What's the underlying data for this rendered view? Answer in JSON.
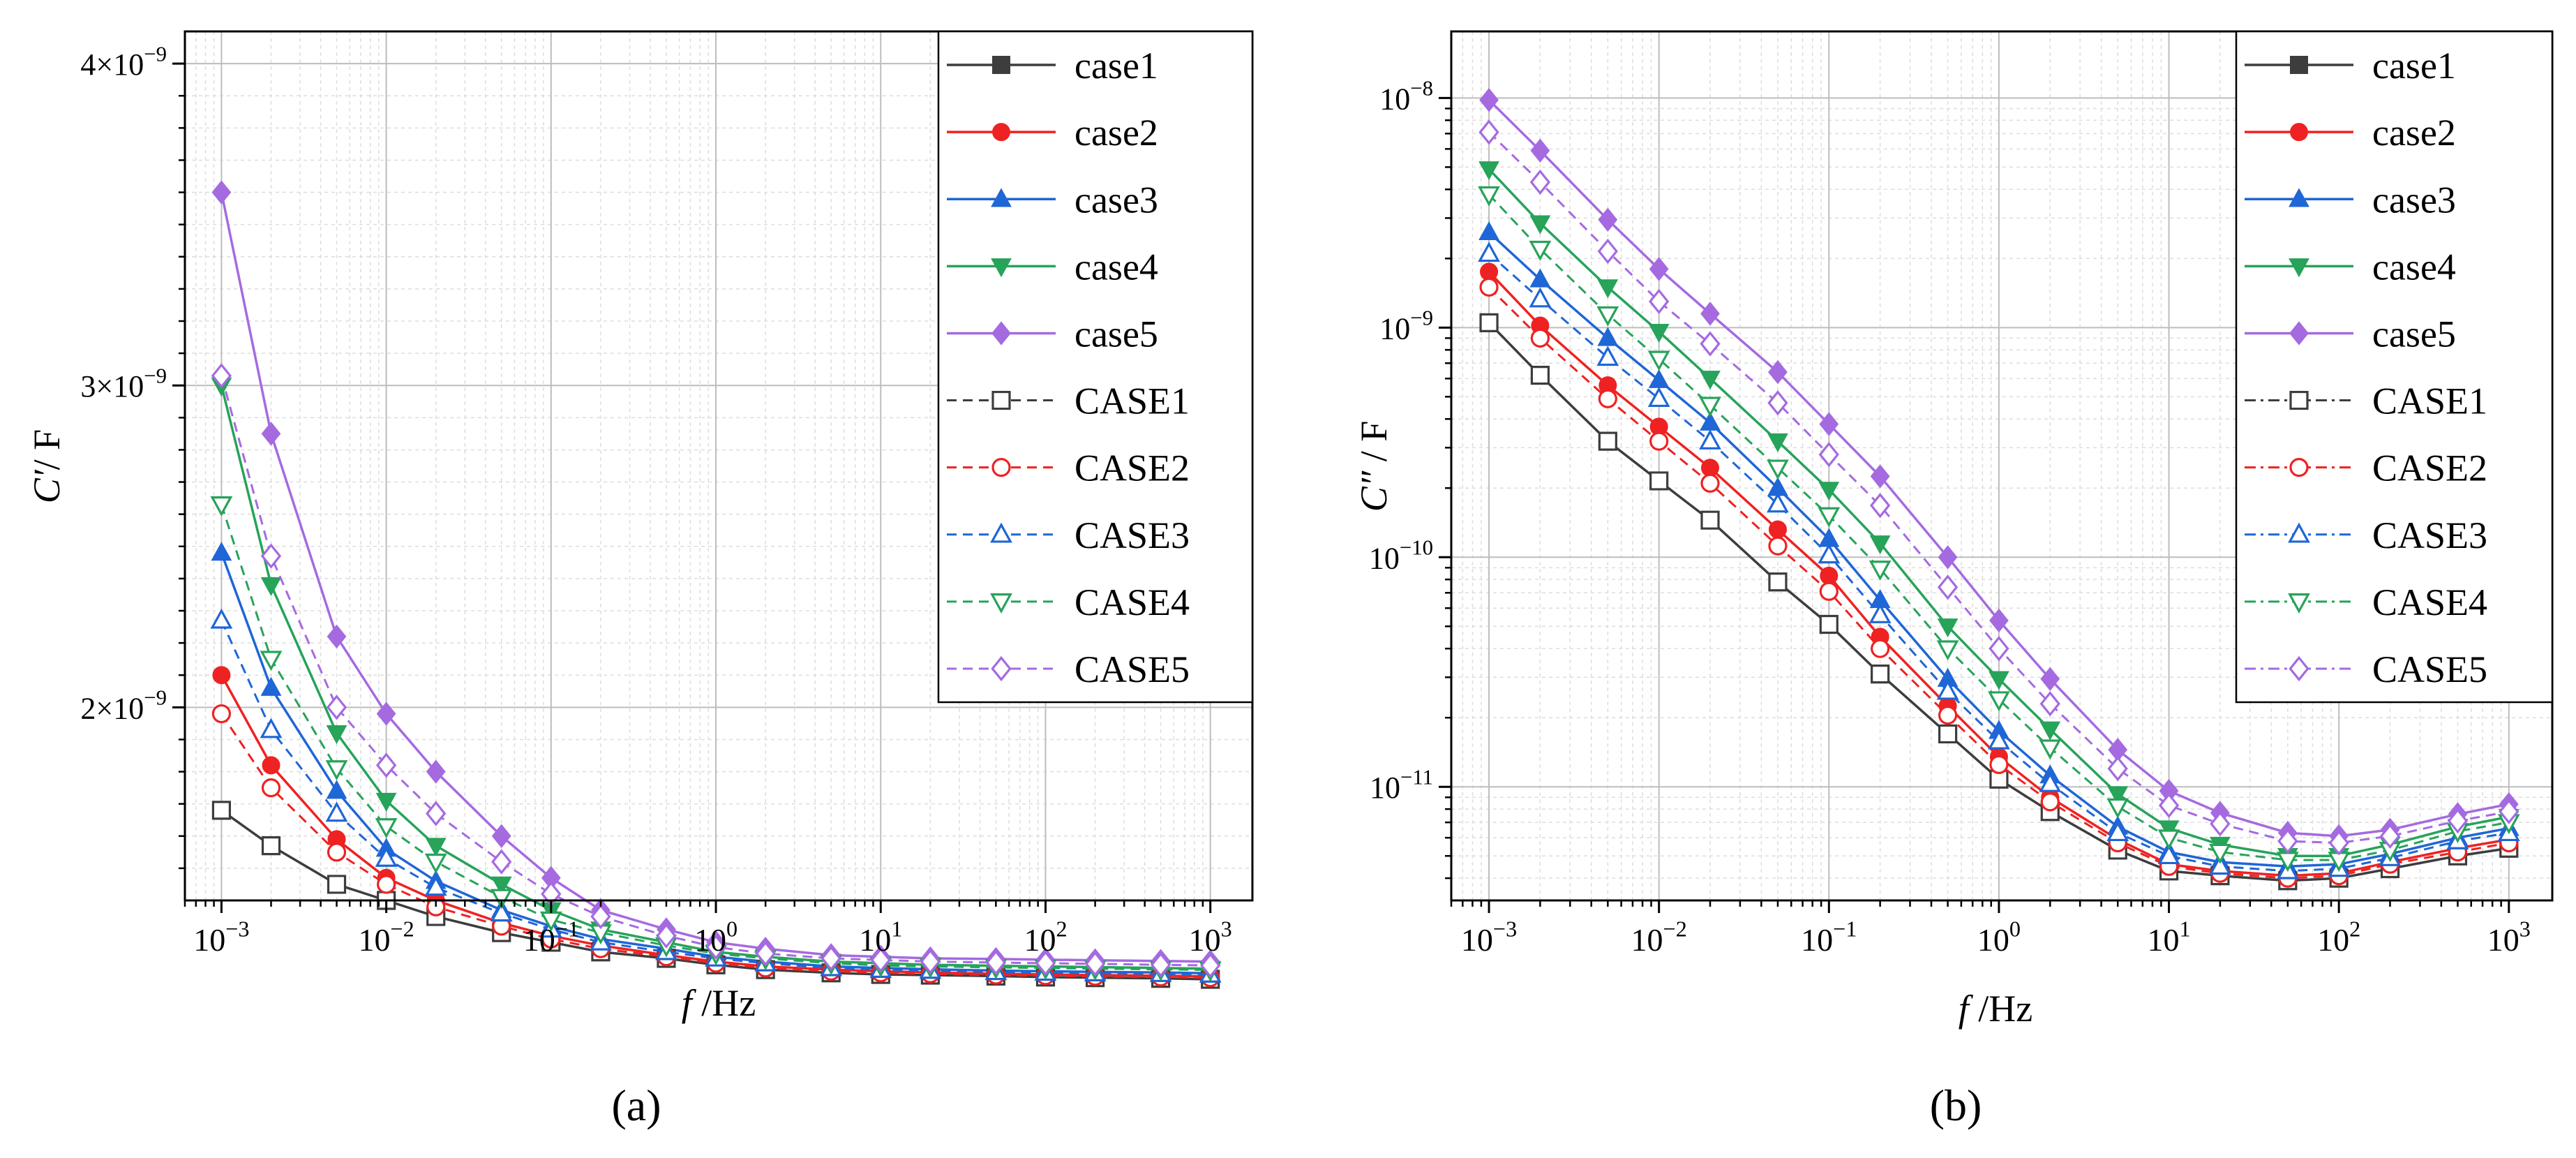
{
  "colors": {
    "case1": "#3d3d3d",
    "case2": "#ee2222",
    "case3": "#1f66d6",
    "case4": "#27a35a",
    "case5": "#a56ae0",
    "grid_major": "#bdbdbd",
    "grid_minor": "#dddddd",
    "axis": "#000000"
  },
  "legend": [
    {
      "label": "case1",
      "color": "case1",
      "marker": "square",
      "filled": true,
      "dash": "solid",
      "series": "case1"
    },
    {
      "label": "case2",
      "color": "case2",
      "marker": "circle",
      "filled": true,
      "dash": "solid",
      "series": "case2"
    },
    {
      "label": "case3",
      "color": "case3",
      "marker": "triangle-up",
      "filled": true,
      "dash": "solid",
      "series": "case3"
    },
    {
      "label": "case4",
      "color": "case4",
      "marker": "triangle-down",
      "filled": true,
      "dash": "solid",
      "series": "case4"
    },
    {
      "label": "case5",
      "color": "case5",
      "marker": "diamond",
      "filled": true,
      "dash": "solid",
      "series": "case5"
    },
    {
      "label": "CASE1",
      "color": "case1",
      "marker": "square",
      "filled": false,
      "dash": "dash",
      "series": "CASE1"
    },
    {
      "label": "CASE2",
      "color": "case2",
      "marker": "circle",
      "filled": false,
      "dash": "dash",
      "series": "CASE2"
    },
    {
      "label": "CASE3",
      "color": "case3",
      "marker": "triangle-up",
      "filled": false,
      "dash": "dash",
      "series": "CASE3"
    },
    {
      "label": "CASE4",
      "color": "case4",
      "marker": "triangle-down",
      "filled": false,
      "dash": "dash",
      "series": "CASE4"
    },
    {
      "label": "CASE5",
      "color": "case5",
      "marker": "diamond",
      "filled": false,
      "dash": "dash",
      "series": "CASE5"
    }
  ],
  "chart_data": [
    {
      "id": "a",
      "type": "line",
      "panel_label": "(a)",
      "xlabel_italic": "f",
      "xlabel_rest": " /Hz",
      "ylabel_italic": "C′",
      "ylabel_rest": "/ F",
      "x_scale": "log",
      "y_scale": "linear",
      "xlim": [
        0.0006,
        1800
      ],
      "ylim": [
        1.4e-09,
        4.1e-09
      ],
      "x_ticks": [
        {
          "value": 0.001,
          "base": "10",
          "exp": "−3"
        },
        {
          "value": 0.01,
          "base": "10",
          "exp": "−2"
        },
        {
          "value": 0.1,
          "base": "10",
          "exp": "−1"
        },
        {
          "value": 1,
          "base": "10",
          "exp": "0"
        },
        {
          "value": 10,
          "base": "10",
          "exp": "1"
        },
        {
          "value": 100,
          "base": "10",
          "exp": "2"
        },
        {
          "value": 1000,
          "base": "10",
          "exp": "3"
        }
      ],
      "y_ticks": [
        {
          "value": 2e-09,
          "base": "2×10",
          "exp": "−9"
        },
        {
          "value": 3e-09,
          "base": "3×10",
          "exp": "−9"
        },
        {
          "value": 4e-09,
          "base": "4×10",
          "exp": "−9"
        }
      ],
      "x": [
        0.001,
        0.002,
        0.005,
        0.01,
        0.02,
        0.05,
        0.1,
        0.2,
        0.5,
        1,
        2,
        5,
        10,
        20,
        50,
        100,
        200,
        500,
        1000
      ],
      "series": [
        {
          "name": "case1",
          "values": [
            1.68e-09,
            1.57e-09,
            1.45e-09,
            1.4e-09,
            1.35e-09,
            1.3e-09,
            1.27e-09,
            1.24e-09,
            1.22e-09,
            1.2e-09,
            1.185e-09,
            1.175e-09,
            1.17e-09,
            1.168e-09,
            1.165e-09,
            1.162e-09,
            1.16e-09,
            1.158e-09,
            1.155e-09
          ]
        },
        {
          "name": "case2",
          "values": [
            2.1e-09,
            1.82e-09,
            1.59e-09,
            1.47e-09,
            1.4e-09,
            1.33e-09,
            1.29e-09,
            1.26e-09,
            1.23e-09,
            1.21e-09,
            1.195e-09,
            1.185e-09,
            1.18e-09,
            1.176e-09,
            1.172e-09,
            1.17e-09,
            1.168e-09,
            1.166e-09,
            1.164e-09
          ]
        },
        {
          "name": "case3",
          "values": [
            2.48e-09,
            2.06e-09,
            1.74e-09,
            1.56e-09,
            1.46e-09,
            1.37e-09,
            1.32e-09,
            1.28e-09,
            1.25e-09,
            1.225e-09,
            1.21e-09,
            1.195e-09,
            1.19e-09,
            1.186e-09,
            1.182e-09,
            1.18e-09,
            1.178e-09,
            1.176e-09,
            1.174e-09
          ]
        },
        {
          "name": "case4",
          "values": [
            3e-09,
            2.38e-09,
            1.92e-09,
            1.71e-09,
            1.57e-09,
            1.45e-09,
            1.37e-09,
            1.31e-09,
            1.27e-09,
            1.24e-09,
            1.225e-09,
            1.21e-09,
            1.205e-09,
            1.2e-09,
            1.197e-09,
            1.195e-09,
            1.193e-09,
            1.19e-09,
            1.188e-09
          ]
        },
        {
          "name": "case5",
          "values": [
            3.6e-09,
            2.85e-09,
            2.22e-09,
            1.98e-09,
            1.8e-09,
            1.6e-09,
            1.47e-09,
            1.37e-09,
            1.31e-09,
            1.27e-09,
            1.25e-09,
            1.23e-09,
            1.225e-09,
            1.22e-09,
            1.218e-09,
            1.216e-09,
            1.214e-09,
            1.212e-09,
            1.21e-09
          ]
        },
        {
          "name": "CASE1",
          "values": [
            1.68e-09,
            1.57e-09,
            1.45e-09,
            1.4e-09,
            1.35e-09,
            1.3e-09,
            1.27e-09,
            1.24e-09,
            1.22e-09,
            1.2e-09,
            1.185e-09,
            1.175e-09,
            1.17e-09,
            1.168e-09,
            1.165e-09,
            1.162e-09,
            1.16e-09,
            1.158e-09,
            1.155e-09
          ]
        },
        {
          "name": "CASE2",
          "values": [
            1.98e-09,
            1.75e-09,
            1.55e-09,
            1.45e-09,
            1.38e-09,
            1.32e-09,
            1.28e-09,
            1.25e-09,
            1.225e-09,
            1.205e-09,
            1.19e-09,
            1.18e-09,
            1.175e-09,
            1.172e-09,
            1.168e-09,
            1.166e-09,
            1.164e-09,
            1.162e-09,
            1.16e-09
          ]
        },
        {
          "name": "CASE3",
          "values": [
            2.27e-09,
            1.93e-09,
            1.67e-09,
            1.53e-09,
            1.44e-09,
            1.36e-09,
            1.31e-09,
            1.27e-09,
            1.24e-09,
            1.22e-09,
            1.205e-09,
            1.19e-09,
            1.185e-09,
            1.182e-09,
            1.178e-09,
            1.176e-09,
            1.174e-09,
            1.172e-09,
            1.17e-09
          ]
        },
        {
          "name": "CASE4",
          "values": [
            2.63e-09,
            2.15e-09,
            1.81e-09,
            1.63e-09,
            1.52e-09,
            1.41e-09,
            1.34e-09,
            1.3e-09,
            1.26e-09,
            1.235e-09,
            1.22e-09,
            1.205e-09,
            1.198e-09,
            1.195e-09,
            1.192e-09,
            1.19e-09,
            1.188e-09,
            1.186e-09,
            1.184e-09
          ]
        },
        {
          "name": "CASE5",
          "values": [
            3.03e-09,
            2.47e-09,
            2e-09,
            1.82e-09,
            1.67e-09,
            1.52e-09,
            1.42e-09,
            1.35e-09,
            1.29e-09,
            1.255e-09,
            1.235e-09,
            1.22e-09,
            1.215e-09,
            1.21e-09,
            1.207e-09,
            1.205e-09,
            1.203e-09,
            1.2e-09,
            1.198e-09
          ]
        }
      ]
    },
    {
      "id": "b",
      "type": "line",
      "panel_label": "(b)",
      "xlabel_italic": "f",
      "xlabel_rest": " /Hz",
      "ylabel_italic": "C″",
      "ylabel_rest": " / F",
      "x_scale": "log",
      "y_scale": "log",
      "xlim": [
        0.0006,
        1800
      ],
      "ylim": [
        3.2e-12,
        1.95e-08
      ],
      "x_ticks": [
        {
          "value": 0.001,
          "base": "10",
          "exp": "−3"
        },
        {
          "value": 0.01,
          "base": "10",
          "exp": "−2"
        },
        {
          "value": 0.1,
          "base": "10",
          "exp": "−1"
        },
        {
          "value": 1,
          "base": "10",
          "exp": "0"
        },
        {
          "value": 10,
          "base": "10",
          "exp": "1"
        },
        {
          "value": 100,
          "base": "10",
          "exp": "2"
        },
        {
          "value": 1000,
          "base": "10",
          "exp": "3"
        }
      ],
      "y_ticks": [
        {
          "value": 1e-11,
          "base": "10",
          "exp": "−11"
        },
        {
          "value": 1e-10,
          "base": "10",
          "exp": "−10"
        },
        {
          "value": 1e-09,
          "base": "10",
          "exp": "−9"
        },
        {
          "value": 1e-08,
          "base": "10",
          "exp": "−8"
        }
      ],
      "x": [
        0.001,
        0.002,
        0.005,
        0.01,
        0.02,
        0.05,
        0.1,
        0.2,
        0.5,
        1,
        2,
        5,
        10,
        20,
        50,
        100,
        200,
        500,
        1000
      ],
      "series": [
        {
          "name": "case1",
          "values": [
            1.05e-09,
            6.2e-10,
            3.2e-10,
            2.15e-10,
            1.45e-10,
            7.8e-11,
            5.1e-11,
            3.1e-11,
            1.7e-11,
            1.08e-11,
            7.8e-12,
            5.3e-12,
            4.3e-12,
            4.1e-12,
            3.9e-12,
            4e-12,
            4.4e-12,
            5e-12,
            5.4e-12
          ]
        },
        {
          "name": "case2",
          "values": [
            1.75e-09,
            1.02e-09,
            5.6e-10,
            3.7e-10,
            2.45e-10,
            1.32e-10,
            8.3e-11,
            4.5e-11,
            2.25e-11,
            1.35e-11,
            9e-12,
            5.9e-12,
            4.6e-12,
            4.3e-12,
            4.1e-12,
            4.2e-12,
            4.7e-12,
            5.4e-12,
            5.9e-12
          ]
        },
        {
          "name": "case3",
          "values": [
            2.6e-09,
            1.62e-09,
            9e-10,
            5.9e-10,
            3.85e-10,
            2e-10,
            1.2e-10,
            6.5e-11,
            2.95e-11,
            1.75e-11,
            1.12e-11,
            6.7e-12,
            5.2e-12,
            4.7e-12,
            4.5e-12,
            4.6e-12,
            5.1e-12,
            6e-12,
            6.6e-12
          ]
        },
        {
          "name": "case4",
          "values": [
            4.9e-09,
            2.85e-09,
            1.5e-09,
            9.6e-10,
            6e-10,
            3.2e-10,
            1.97e-10,
            1.15e-10,
            5e-11,
            2.95e-11,
            1.78e-11,
            9.3e-12,
            6.6e-12,
            5.6e-12,
            5e-12,
            5e-12,
            5.6e-12,
            6.7e-12,
            7.4e-12
          ]
        },
        {
          "name": "case5",
          "values": [
            9.8e-09,
            5.9e-09,
            2.95e-09,
            1.8e-09,
            1.15e-09,
            6.4e-10,
            3.8e-10,
            2.25e-10,
            1e-10,
            5.3e-11,
            2.95e-11,
            1.45e-11,
            9.6e-12,
            7.7e-12,
            6.3e-12,
            6.1e-12,
            6.5e-12,
            7.6e-12,
            8.4e-12
          ]
        },
        {
          "name": "CASE1",
          "values": [
            1.05e-09,
            6.2e-10,
            3.2e-10,
            2.15e-10,
            1.45e-10,
            7.8e-11,
            5.1e-11,
            3.1e-11,
            1.7e-11,
            1.08e-11,
            7.8e-12,
            5.3e-12,
            4.3e-12,
            4.1e-12,
            3.9e-12,
            4e-12,
            4.4e-12,
            5e-12,
            5.4e-12
          ]
        },
        {
          "name": "CASE2",
          "values": [
            1.5e-09,
            9e-10,
            4.9e-10,
            3.2e-10,
            2.1e-10,
            1.12e-10,
            7.1e-11,
            4e-11,
            2.05e-11,
            1.25e-11,
            8.6e-12,
            5.7e-12,
            4.5e-12,
            4.2e-12,
            4e-12,
            4.1e-12,
            4.6e-12,
            5.2e-12,
            5.7e-12
          ]
        },
        {
          "name": "CASE3",
          "values": [
            2.1e-09,
            1.33e-09,
            7.4e-10,
            4.9e-10,
            3.2e-10,
            1.7e-10,
            1.02e-10,
            5.6e-11,
            2.6e-11,
            1.58e-11,
            1.03e-11,
            6.3e-12,
            5e-12,
            4.5e-12,
            4.3e-12,
            4.4e-12,
            4.9e-12,
            5.8e-12,
            6.3e-12
          ]
        },
        {
          "name": "CASE4",
          "values": [
            3.8e-09,
            2.2e-09,
            1.14e-09,
            7.3e-10,
            4.6e-10,
            2.45e-10,
            1.52e-10,
            8.9e-11,
            4e-11,
            2.4e-11,
            1.48e-11,
            8.2e-12,
            6e-12,
            5.2e-12,
            4.8e-12,
            4.8e-12,
            5.3e-12,
            6.4e-12,
            7e-12
          ]
        },
        {
          "name": "CASE5",
          "values": [
            7.1e-09,
            4.3e-09,
            2.15e-09,
            1.3e-09,
            8.5e-10,
            4.7e-10,
            2.8e-10,
            1.68e-10,
            7.4e-11,
            4e-11,
            2.3e-11,
            1.2e-11,
            8.3e-12,
            6.9e-12,
            5.8e-12,
            5.7e-12,
            6.1e-12,
            7.1e-12,
            7.8e-12
          ]
        }
      ]
    }
  ]
}
